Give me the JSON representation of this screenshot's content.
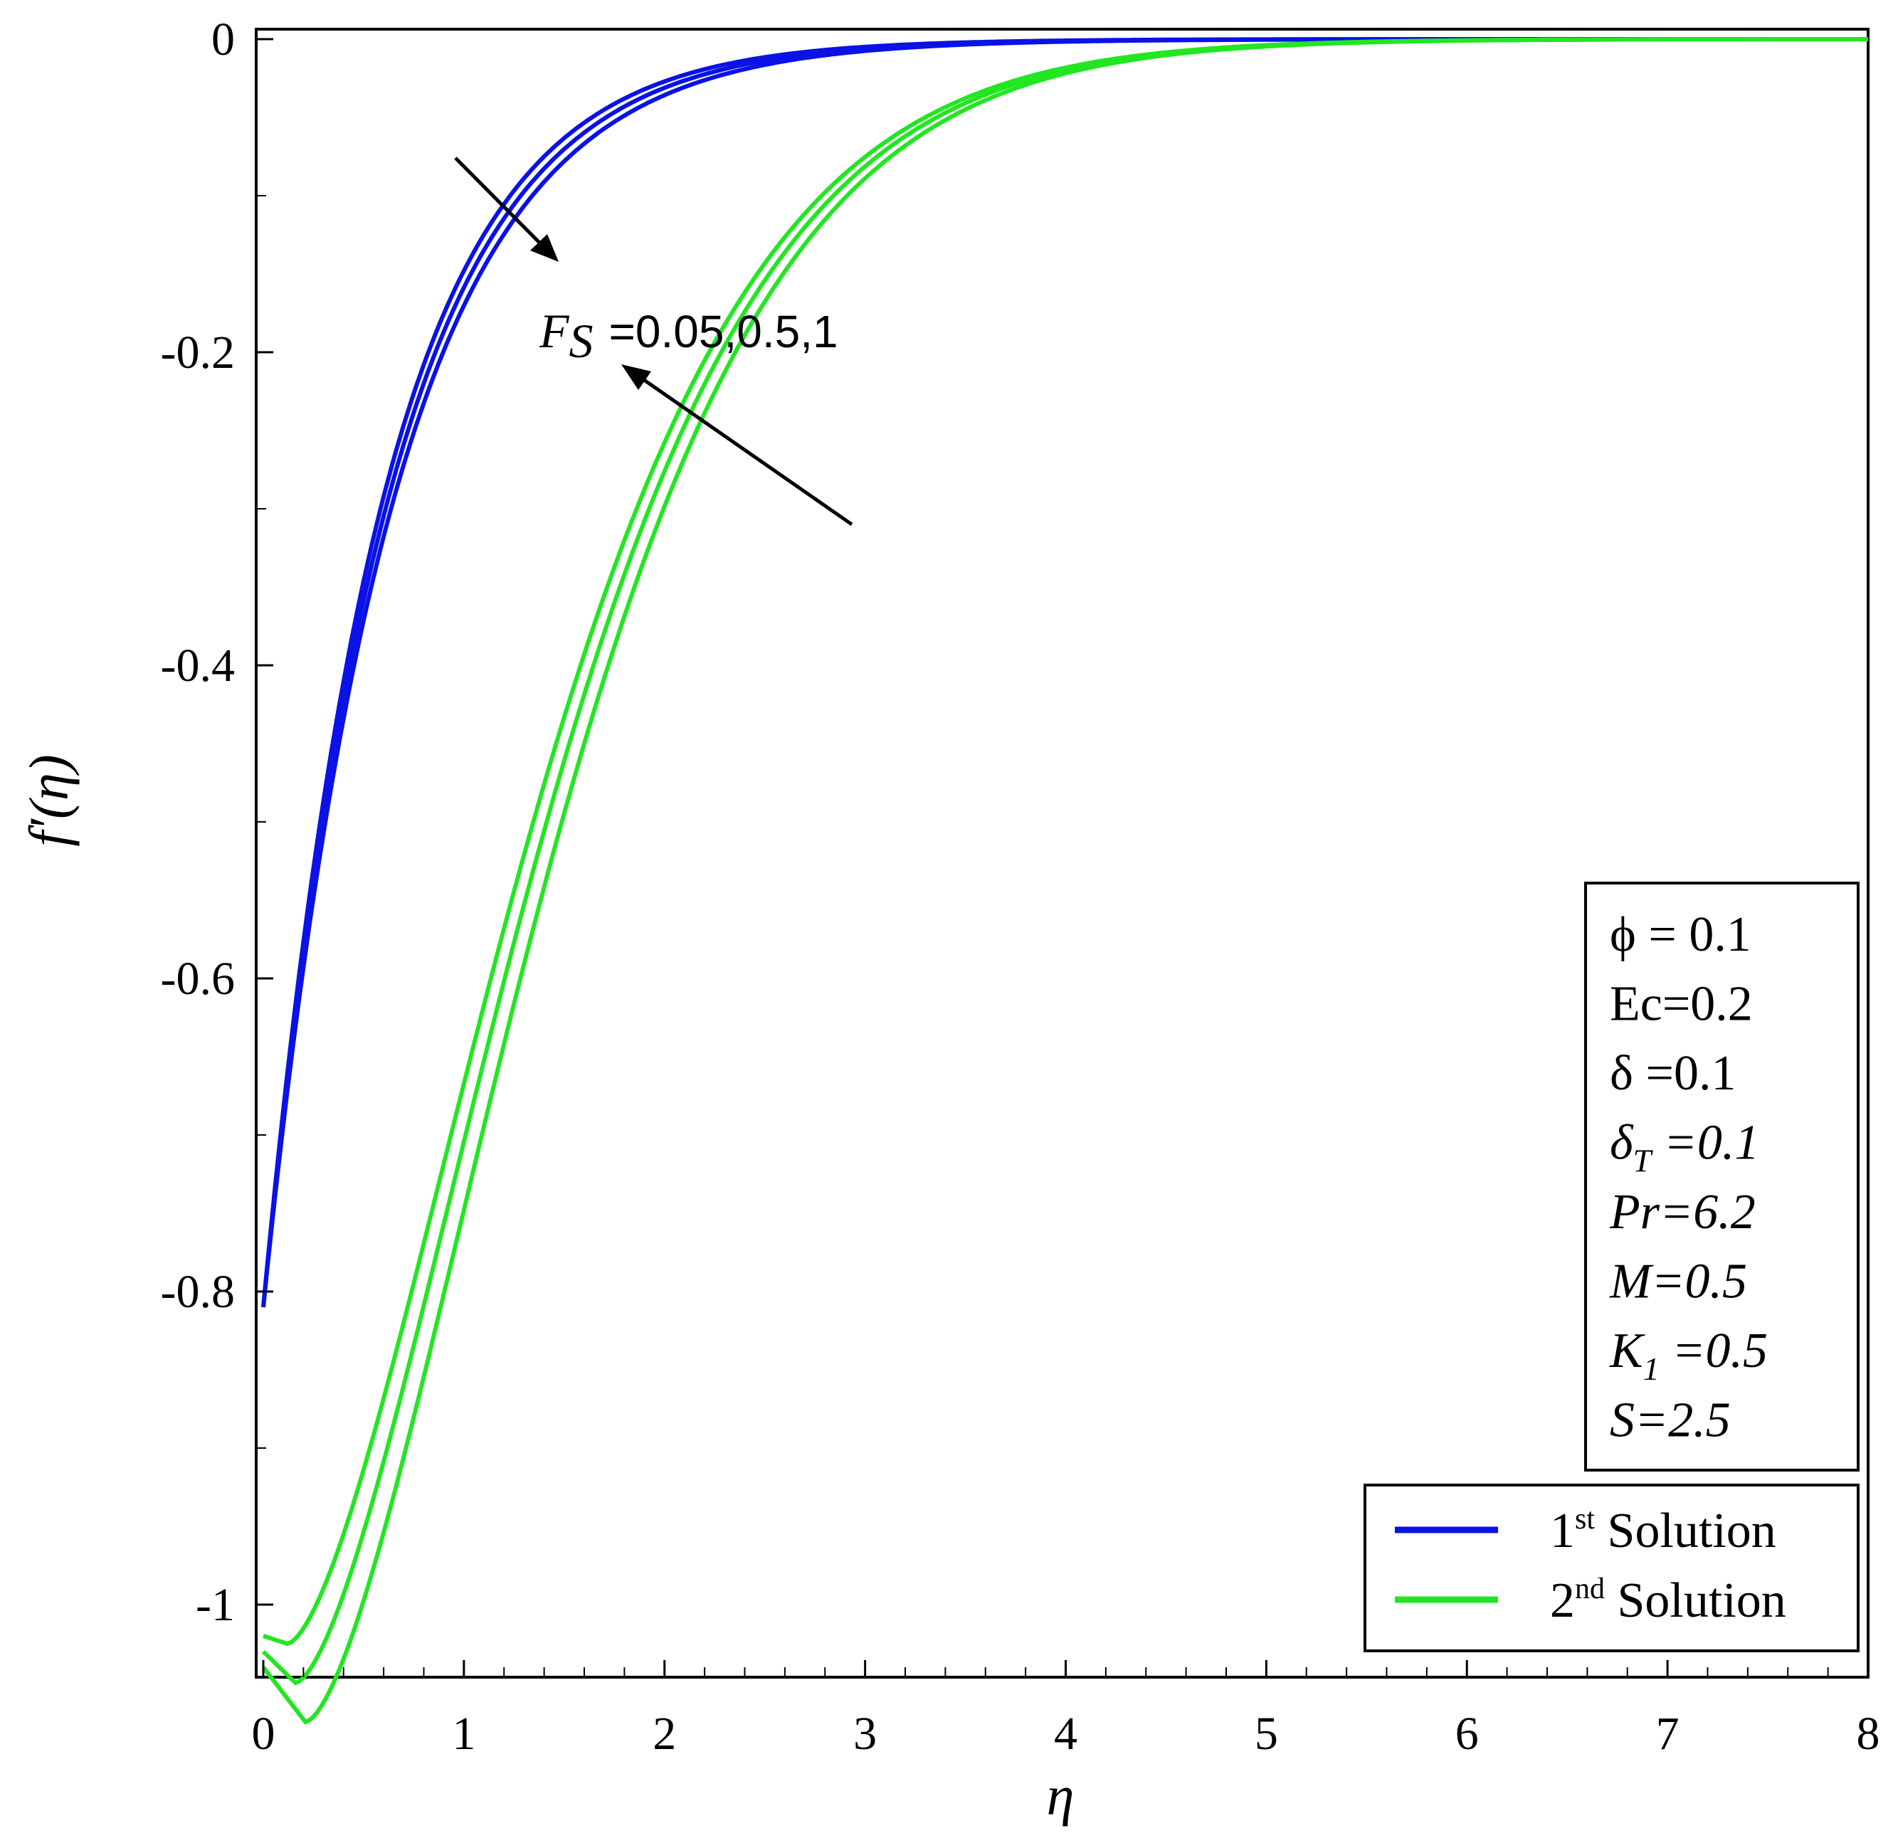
{
  "chart_data": {
    "type": "line",
    "xlabel": "η",
    "ylabel": "f′(η)",
    "xlim": [
      0,
      8
    ],
    "ylim": [
      -1.08,
      0
    ],
    "xticks": [
      "0",
      "1",
      "2",
      "3",
      "4",
      "5",
      "6",
      "7",
      "8"
    ],
    "yticks": [
      "0",
      "-0.2",
      "-0.4",
      "-0.6",
      "-0.8",
      "-1"
    ],
    "grid": false,
    "colors": {
      "first": "#0a12e6",
      "second": "#22e622"
    },
    "series": [
      {
        "group": "first",
        "fs": "0.05",
        "eta0": 0,
        "f0": -0.81,
        "k1": 1.7,
        "k2": 8
      },
      {
        "group": "first",
        "fs": "0.5",
        "eta0": 0,
        "f0": -0.81,
        "k1": 1.63,
        "k2": 8
      },
      {
        "group": "first",
        "fs": "1",
        "eta0": 0,
        "f0": -0.81,
        "k1": 1.56,
        "k2": 8
      },
      {
        "group": "second",
        "fs": "0.05",
        "eta0": 0.12,
        "f0": -1.02,
        "min": -1.025,
        "k1": 0.95,
        "k2": 1.5
      },
      {
        "group": "second",
        "fs": "0.5",
        "eta0": 0.16,
        "f0": -1.03,
        "min": -1.05,
        "k1": 0.95,
        "k2": 1.1
      },
      {
        "group": "second",
        "fs": "1",
        "eta0": 0.21,
        "f0": -1.04,
        "min": -1.075,
        "k1": 0.95,
        "k2": 0.8
      }
    ],
    "annotation": {
      "symbol": "F",
      "subscript": "S",
      "values": "=0.05,0.5,1"
    },
    "parameters": [
      {
        "label": "ϕ",
        "value": " = 0.1",
        "italic": false
      },
      {
        "label": "Ec",
        "value": "=0.2",
        "italic": false
      },
      {
        "label": "δ",
        "value": " =0.1",
        "italic": false
      },
      {
        "label": "δ",
        "sub": "T",
        "value": " =0.1",
        "italic": true
      },
      {
        "label": "Pr",
        "value": "=6.2",
        "italic": true
      },
      {
        "label": "M",
        "value": "=0.5",
        "italic": true
      },
      {
        "label": "K",
        "sub": "1",
        "value": " =0.5",
        "italic": true
      },
      {
        "label": "S",
        "value": "=2.5",
        "italic": true
      }
    ],
    "legend": [
      {
        "num": "1",
        "sup": "st",
        "text": " Solution",
        "group": "first"
      },
      {
        "num": "2",
        "sup": "nd",
        "text": " Solution",
        "group": "second"
      }
    ]
  }
}
